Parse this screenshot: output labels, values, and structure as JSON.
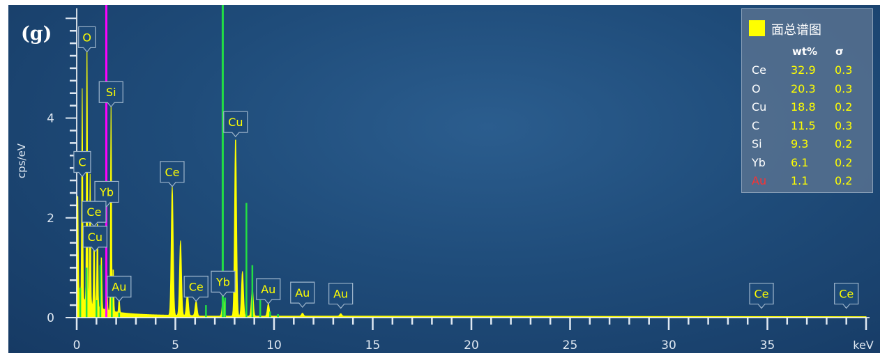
{
  "panel_label": "(g)",
  "legend": {
    "title": "面总谱图",
    "swatch_color": "#ffff00",
    "col_wt": "wt%",
    "col_sigma": "σ",
    "rows": [
      {
        "el": "Ce",
        "wt": "32.9",
        "sigma": "0.3",
        "color": "#ffffff"
      },
      {
        "el": "O",
        "wt": "20.3",
        "sigma": "0.3",
        "color": "#ffffff"
      },
      {
        "el": "Cu",
        "wt": "18.8",
        "sigma": "0.2",
        "color": "#ffffff"
      },
      {
        "el": "C",
        "wt": "11.5",
        "sigma": "0.3",
        "color": "#ffffff"
      },
      {
        "el": "Si",
        "wt": "9.3",
        "sigma": "0.2",
        "color": "#ffffff"
      },
      {
        "el": "Yb",
        "wt": "6.1",
        "sigma": "0.2",
        "color": "#ffffff"
      },
      {
        "el": "Au",
        "wt": "1.1",
        "sigma": "0.2",
        "color": "#ff3030"
      }
    ]
  },
  "chart_data": {
    "type": "line",
    "xlabel": "keV",
    "ylabel": "cps/eV",
    "xlim": [
      0,
      40
    ],
    "ylim": [
      0,
      6.2
    ],
    "x_ticks": [
      "0",
      "5",
      "10",
      "15",
      "20",
      "25",
      "30",
      "35"
    ],
    "y_ticks": [
      "0",
      "2",
      "4"
    ],
    "colors": {
      "spectrum": "#ffff00",
      "magenta_marker": "#ff00ff",
      "green_lines": "#22dd44",
      "label_box": "#1e4a78"
    },
    "spectrum_peaks": [
      {
        "x": 0.05,
        "y": 2.1
      },
      {
        "x": 0.28,
        "y": 4.2
      },
      {
        "x": 0.52,
        "y": 5.3
      },
      {
        "x": 0.68,
        "y": 2.6
      },
      {
        "x": 0.88,
        "y": 1.6
      },
      {
        "x": 1.05,
        "y": 1.8
      },
      {
        "x": 1.25,
        "y": 1.1
      },
      {
        "x": 1.52,
        "y": 1.0
      },
      {
        "x": 1.74,
        "y": 4.2
      },
      {
        "x": 1.85,
        "y": 0.9
      },
      {
        "x": 2.15,
        "y": 0.3
      },
      {
        "x": 4.84,
        "y": 2.6
      },
      {
        "x": 5.26,
        "y": 1.5
      },
      {
        "x": 5.61,
        "y": 0.45
      },
      {
        "x": 6.05,
        "y": 0.3
      },
      {
        "x": 7.42,
        "y": 0.35
      },
      {
        "x": 8.05,
        "y": 3.6
      },
      {
        "x": 8.4,
        "y": 0.9
      },
      {
        "x": 8.9,
        "y": 0.55
      },
      {
        "x": 9.71,
        "y": 0.25
      },
      {
        "x": 11.44,
        "y": 0.06
      },
      {
        "x": 13.38,
        "y": 0.05
      }
    ],
    "element_markers": [
      {
        "x": 1.5,
        "color": "#ff00ff"
      },
      {
        "x": 7.4,
        "color": "#22dd44"
      }
    ],
    "green_lines": [
      {
        "x": 0.18,
        "y": 0.6
      },
      {
        "x": 0.5,
        "y": 1.0
      },
      {
        "x": 1.0,
        "y": 0.35
      },
      {
        "x": 1.2,
        "y": 1.05
      },
      {
        "x": 1.5,
        "y": 1.35
      },
      {
        "x": 1.78,
        "y": 0.45
      },
      {
        "x": 2.15,
        "y": 0.1
      },
      {
        "x": 6.55,
        "y": 0.25
      },
      {
        "x": 7.52,
        "y": 0.4
      },
      {
        "x": 8.6,
        "y": 2.3
      },
      {
        "x": 8.9,
        "y": 1.05
      },
      {
        "x": 9.3,
        "y": 0.35
      },
      {
        "x": 9.8,
        "y": 0.12
      },
      {
        "x": 10.2,
        "y": 0.07
      }
    ],
    "peak_labels": [
      {
        "text": "O",
        "x": 0.52,
        "y": 5.3
      },
      {
        "text": "Si",
        "x": 1.74,
        "y": 4.2
      },
      {
        "text": "Cu",
        "x": 8.05,
        "y": 3.6
      },
      {
        "text": "C",
        "x": 0.28,
        "y": 2.8
      },
      {
        "text": "Ce",
        "x": 4.84,
        "y": 2.6
      },
      {
        "text": "Yb",
        "x": 1.52,
        "y": 2.2
      },
      {
        "text": "Ce",
        "x": 0.88,
        "y": 1.8
      },
      {
        "text": "Cu",
        "x": 0.93,
        "y": 1.3
      },
      {
        "text": "Au",
        "x": 2.15,
        "y": 0.3
      },
      {
        "text": "Ce",
        "x": 6.05,
        "y": 0.3
      },
      {
        "text": "Yb",
        "x": 7.42,
        "y": 0.4
      },
      {
        "text": "Au",
        "x": 9.71,
        "y": 0.25
      },
      {
        "text": "Au",
        "x": 11.44,
        "y": 0.18
      },
      {
        "text": "Au",
        "x": 13.38,
        "y": 0.16
      },
      {
        "text": "Ce",
        "x": 34.7,
        "y": 0.16
      },
      {
        "text": "Ce",
        "x": 39.0,
        "y": 0.16
      }
    ]
  }
}
